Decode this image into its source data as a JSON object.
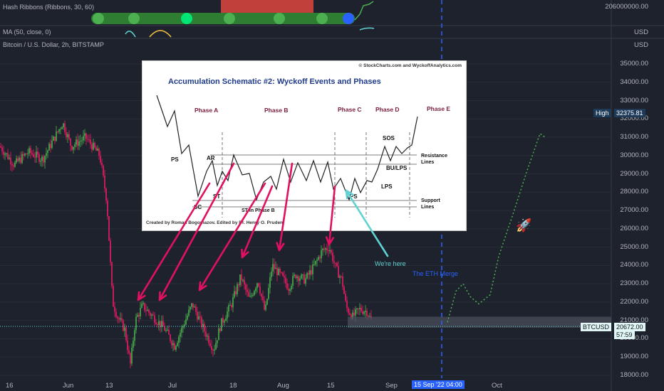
{
  "indicators": {
    "hash_ribbons": "Hash Ribbons (Ribbons, 30, 60)",
    "ma": "MA (50, close, 0)",
    "symbol": "Bitcoin / U.S. Dollar, 2h, BITSTAMP"
  },
  "panes": {
    "hash_value": "206000000.00",
    "usd1": "USD",
    "usd2": "USD"
  },
  "price_axis": [
    "35000.00",
    "34000.00",
    "33000.00",
    "32000.00",
    "31000.00",
    "30000.00",
    "29000.00",
    "28000.00",
    "27000.00",
    "26000.00",
    "25000.00",
    "24000.00",
    "23000.00",
    "22000.00",
    "21000.00",
    "20000.00",
    "19000.00",
    "18000.00"
  ],
  "high_label": "High",
  "high_value": "32375.81",
  "btc_label": "BTCUSD",
  "btc_value": "20672.00",
  "btc_timer": "57:59",
  "time_axis": {
    "ticks": [
      "16",
      "Jun",
      "13",
      "Jul",
      "18",
      "Aug",
      "15",
      "Sep",
      "Oct"
    ],
    "current": "15 Sep '22  04:00"
  },
  "annotations": {
    "eth_merge": "The ETH Merge",
    "were_here": "We're here",
    "rocket": "rocket-icon"
  },
  "inset": {
    "copyright": "© StockCharts.com and WyckoffAnalytics.com",
    "title": "Accumulation Schematic #2: Wyckoff Events and Phases",
    "phases": [
      "Phase A",
      "Phase B",
      "Phase C",
      "Phase D",
      "Phase E"
    ],
    "events": {
      "ps": "PS",
      "sc": "SC",
      "ar": "AR",
      "st": "ST",
      "st_b": "ST in Phase B",
      "lps": "LPS",
      "lps2": "LPS",
      "sos": "SOS",
      "bu": "BU/LPS"
    },
    "resistance": "Resistance\nLines",
    "support": "Support\nLines",
    "credit": "Created by Roman Bogomazov. Edited by Dr. Henry O. Pruden"
  },
  "colors": {
    "background": "#1e222d",
    "bull": "#4caf50",
    "bear": "#e91e63",
    "arrow": "#e0115f",
    "cyan": "#5fd3d3",
    "dash_blue": "#2962ff",
    "projection": "#4caf50",
    "btc_badge": "#e0f7f5",
    "high_badge": "#1e3b5a"
  },
  "chart_data": {
    "type": "line",
    "title": "Bitcoin / U.S. Dollar, 2h, BITSTAMP",
    "xlabel": "",
    "ylabel": "",
    "ylim": [
      17800,
      35600
    ],
    "x": [
      "May 10",
      "May 20",
      "Jun 1",
      "Jun 10",
      "Jun 13",
      "Jun 18",
      "Jun 25",
      "Jul 1",
      "Jul 8",
      "Jul 13",
      "Jul 18",
      "Jul 25",
      "Aug 1",
      "Aug 8",
      "Aug 15",
      "Aug 19",
      "Aug 22",
      "Aug 26"
    ],
    "series": [
      {
        "name": "Bitcoin / U.S. Dollar",
        "values": [
          30500,
          29500,
          31500,
          28500,
          22500,
          19000,
          21000,
          19500,
          21500,
          19800,
          22500,
          22000,
          23000,
          24000,
          24800,
          21500,
          21200,
          20672
        ]
      }
    ],
    "projection": [
      {
        "x": "Sep 1",
        "y": 20600
      },
      {
        "x": "Sep 10",
        "y": 23000
      },
      {
        "x": "Sep 15",
        "y": 21800
      },
      {
        "x": "Sep 25",
        "y": 24000
      },
      {
        "x": "Oct 8",
        "y": 31000
      }
    ]
  }
}
